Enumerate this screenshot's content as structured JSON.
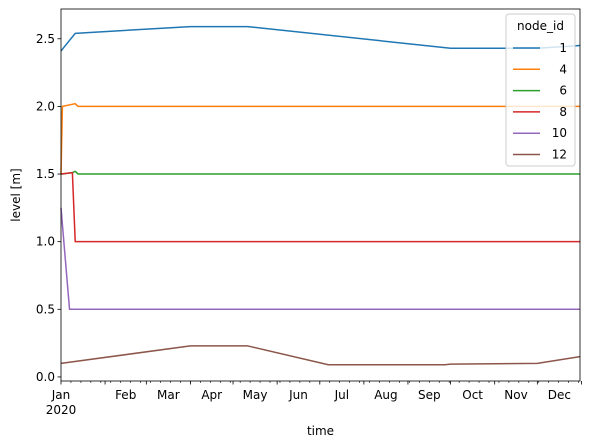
{
  "chart_data": {
    "type": "line",
    "title": "",
    "xlabel": "time",
    "ylabel": "level [m]",
    "x_ticks": [
      "Jan",
      "Feb",
      "Mar",
      "Apr",
      "May",
      "Jun",
      "Jul",
      "Aug",
      "Sep",
      "Oct",
      "Nov",
      "Dec"
    ],
    "x_year_label": "2020",
    "x_range": [
      0,
      365
    ],
    "ylim": [
      -0.03,
      2.72
    ],
    "y_ticks": [
      "0.0",
      "0.5",
      "1.0",
      "1.5",
      "2.0",
      "2.5"
    ],
    "grid": false,
    "legend": {
      "title": "node_id",
      "placement": "top-right"
    },
    "series": [
      {
        "name": "1",
        "color": "#1f77b4",
        "x": [
          0,
          10,
          91,
          131,
          274,
          305,
          335,
          365
        ],
        "y": [
          2.41,
          2.54,
          2.59,
          2.59,
          2.43,
          2.43,
          2.43,
          2.45
        ]
      },
      {
        "name": "4",
        "color": "#ff7f0e",
        "x": [
          0,
          1,
          10,
          12,
          365
        ],
        "y": [
          1.5,
          2.0,
          2.02,
          2.0,
          2.0
        ]
      },
      {
        "name": "6",
        "color": "#2ca02c",
        "x": [
          0,
          1,
          8,
          10,
          12,
          365
        ],
        "y": [
          1.5,
          1.5,
          1.51,
          1.52,
          1.5,
          1.5
        ]
      },
      {
        "name": "8",
        "color": "#d62728",
        "x": [
          0,
          8,
          10,
          365
        ],
        "y": [
          1.5,
          1.51,
          1.0,
          1.0
        ]
      },
      {
        "name": "10",
        "color": "#9467bd",
        "x": [
          0,
          6,
          365
        ],
        "y": [
          1.25,
          0.5,
          0.5
        ]
      },
      {
        "name": "12",
        "color": "#8c564b",
        "x": [
          0,
          91,
          131,
          188,
          270,
          274,
          335,
          365
        ],
        "y": [
          0.1,
          0.23,
          0.23,
          0.09,
          0.09,
          0.095,
          0.1,
          0.15
        ]
      }
    ]
  }
}
